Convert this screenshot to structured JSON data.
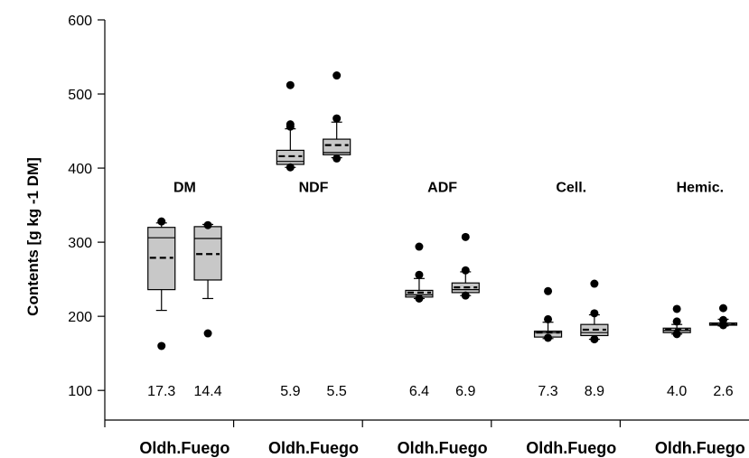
{
  "chart_data": {
    "type": "boxplot",
    "ylabel": "Contents [g kg -1 DM]",
    "ylim": [
      60,
      600
    ],
    "yticks": [
      100,
      200,
      300,
      400,
      500,
      600
    ],
    "grid": false,
    "groups": [
      {
        "label": "DM",
        "category_label": "Oldh.Fuego",
        "boxes": [
          {
            "q1": 236,
            "median": 306,
            "q3": 320,
            "mean": 279,
            "whisker_low": 208,
            "whisker_high": 326,
            "outliers": [
              160,
              328
            ],
            "cv": "17.3"
          },
          {
            "q1": 249,
            "median": 305,
            "q3": 321,
            "mean": 284,
            "whisker_low": 224,
            "whisker_high": 324,
            "outliers": [
              177,
              323
            ],
            "cv": "14.4"
          }
        ]
      },
      {
        "label": "NDF",
        "category_label": "Oldh.Fuego",
        "boxes": [
          {
            "q1": 405,
            "median": 409,
            "q3": 424,
            "mean": 416,
            "whisker_low": 401,
            "whisker_high": 453,
            "outliers": [
              512,
              459,
              456,
              401
            ],
            "cv": "5.9"
          },
          {
            "q1": 418,
            "median": 421,
            "q3": 439,
            "mean": 431,
            "whisker_low": 414,
            "whisker_high": 462,
            "outliers": [
              525,
              467,
              413
            ],
            "cv": "5.5"
          }
        ]
      },
      {
        "label": "ADF",
        "category_label": "Oldh.Fuego",
        "boxes": [
          {
            "q1": 226,
            "median": 229,
            "q3": 235,
            "mean": 232,
            "whisker_low": 224,
            "whisker_high": 251,
            "outliers": [
              294,
              256,
              224
            ],
            "cv": "6.4"
          },
          {
            "q1": 232,
            "median": 236,
            "q3": 245,
            "mean": 239,
            "whisker_low": 228,
            "whisker_high": 260,
            "outliers": [
              307,
              262,
              228
            ],
            "cv": "6.9"
          }
        ]
      },
      {
        "label": "Cell.",
        "category_label": "Oldh.Fuego",
        "boxes": [
          {
            "q1": 172,
            "median": 178,
            "q3": 180,
            "mean": 178,
            "whisker_low": 170,
            "whisker_high": 192,
            "outliers": [
              234,
              196,
              171
            ],
            "cv": "7.3"
          },
          {
            "q1": 174,
            "median": 178,
            "q3": 189,
            "mean": 182,
            "whisker_low": 169,
            "whisker_high": 202,
            "outliers": [
              244,
              204,
              169
            ],
            "cv": "8.9"
          }
        ]
      },
      {
        "label": "Hemic.",
        "category_label": "Oldh.Fuego",
        "boxes": [
          {
            "q1": 178,
            "median": 181,
            "q3": 184,
            "mean": 182,
            "whisker_low": 176,
            "whisker_high": 189,
            "outliers": [
              210,
              193,
              176
            ],
            "cv": "4.0"
          },
          {
            "q1": 188,
            "median": 189,
            "q3": 191,
            "mean": 190,
            "whisker_low": 187,
            "whisker_high": 196,
            "outliers": [
              211,
              195,
              188
            ],
            "cv": "2.6"
          }
        ]
      }
    ]
  }
}
